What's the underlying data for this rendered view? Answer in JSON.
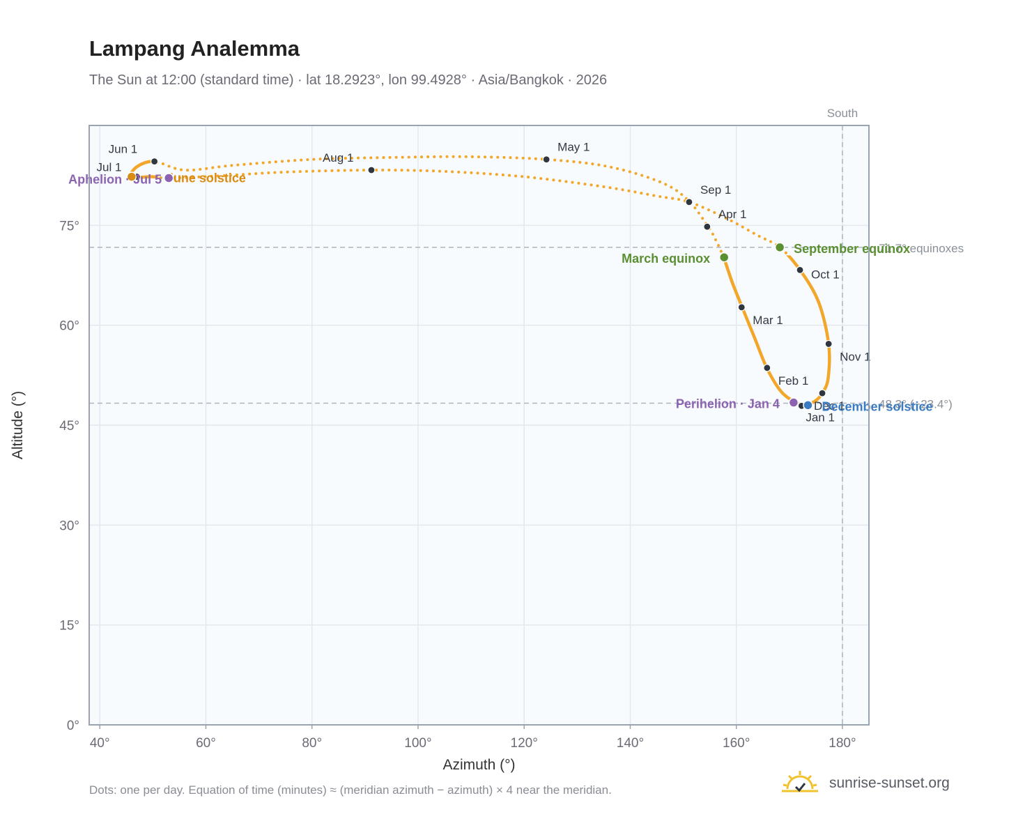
{
  "header": {
    "title": "Lampang Analemma",
    "subtitle": "The Sun at 12:00 (standard time) · lat 18.2923°, lon 99.4928° · Asia/Bangkok · 2026"
  },
  "footer": {
    "note": "Dots: one per day. Equation of time (minutes) ≈ (meridian azimuth − azimuth) × 4 near the meridian.",
    "brand": "sunrise-sunset.org"
  },
  "colors": {
    "curve": "#f2a72a",
    "month_dot": "#2f3640",
    "equinox": "#5a8f32",
    "solstice_june": "#d98c14",
    "solstice_december": "#3b7bc2",
    "apsis": "#8c63b0",
    "plot_bg": "#f8fbfe",
    "grid": "#e3e8ee",
    "frame": "#9aa3b0",
    "ref_line": "#aab5c0"
  },
  "chart_data": {
    "type": "scatter",
    "xlabel": "Azimuth (°)",
    "ylabel": "Altitude (°)",
    "xlim": [
      38,
      185
    ],
    "ylim": [
      0,
      90
    ],
    "xticks": [
      "40°",
      "60°",
      "80°",
      "100°",
      "120°",
      "140°",
      "160°",
      "180°"
    ],
    "xtick_values": [
      40,
      60,
      80,
      100,
      120,
      140,
      160,
      180
    ],
    "yticks": [
      "0°",
      "15°",
      "30°",
      "45°",
      "60°",
      "75°"
    ],
    "ytick_values": [
      0,
      15,
      30,
      45,
      60,
      75
    ],
    "grid": true,
    "south_line": {
      "x": 180,
      "label": "South"
    },
    "equinox_line": {
      "y": 71.7,
      "label": "71.7° equinoxes"
    },
    "dec_solstice_line": {
      "y": 48.3,
      "label": "48.3° (−23.4°)"
    },
    "analemma_path": [
      [
        173.5,
        48.0
      ],
      [
        171.5,
        48.3
      ],
      [
        168.5,
        50.0
      ],
      [
        165.8,
        53.5
      ],
      [
        163.5,
        58.0
      ],
      [
        161.0,
        62.9
      ],
      [
        159.2,
        66.5
      ],
      [
        157.6,
        70.2
      ],
      [
        156.0,
        73.0
      ],
      [
        154.6,
        74.9
      ],
      [
        151.0,
        78.7
      ],
      [
        146.0,
        81.4
      ],
      [
        136.0,
        83.8
      ],
      [
        124.2,
        84.9
      ],
      [
        110.0,
        85.3
      ],
      [
        95.0,
        85.2
      ],
      [
        80.0,
        84.9
      ],
      [
        65.0,
        84.0
      ],
      [
        56.0,
        83.3
      ],
      [
        50.3,
        84.6
      ],
      [
        47.0,
        83.8
      ],
      [
        46.0,
        82.3
      ],
      [
        50.0,
        82.3
      ],
      [
        53.0,
        82.1
      ],
      [
        62.0,
        82.4
      ],
      [
        75.0,
        83.0
      ],
      [
        91.2,
        83.3
      ],
      [
        105.0,
        83.1
      ],
      [
        120.0,
        82.3
      ],
      [
        135.0,
        80.8
      ],
      [
        145.0,
        79.4
      ],
      [
        151.1,
        78.5
      ],
      [
        158.0,
        76.1
      ],
      [
        164.0,
        73.5
      ],
      [
        168.2,
        71.7
      ],
      [
        172.0,
        68.3
      ],
      [
        175.5,
        63.5
      ],
      [
        177.4,
        57.2
      ],
      [
        177.3,
        52.0
      ],
      [
        176.2,
        49.8
      ],
      [
        175.0,
        48.7
      ],
      [
        173.5,
        48.0
      ]
    ],
    "month_markers": [
      {
        "label": "Jan 1",
        "x": 172.3,
        "y": 47.9,
        "dx": 6,
        "dy": 22
      },
      {
        "label": "Feb 1",
        "x": 165.8,
        "y": 53.6,
        "dx": 16,
        "dy": 24
      },
      {
        "label": "Mar 1",
        "x": 161.0,
        "y": 62.7,
        "dx": 16,
        "dy": 24
      },
      {
        "label": "Apr 1",
        "x": 154.5,
        "y": 74.8,
        "dx": 16,
        "dy": -12
      },
      {
        "label": "May 1",
        "x": 124.2,
        "y": 84.9,
        "dx": 16,
        "dy": -12
      },
      {
        "label": "Jun 1",
        "x": 50.3,
        "y": 84.6,
        "dx": -66,
        "dy": -12
      },
      {
        "label": "Jul 1",
        "x": 47.0,
        "y": 82.3,
        "dx": -58,
        "dy": -8
      },
      {
        "label": "Aug 1",
        "x": 91.2,
        "y": 83.3,
        "dx": -70,
        "dy": -12
      },
      {
        "label": "Sep 1",
        "x": 151.1,
        "y": 78.5,
        "dx": 16,
        "dy": -12
      },
      {
        "label": "Oct 1",
        "x": 172.0,
        "y": 68.3,
        "dx": 16,
        "dy": 12
      },
      {
        "label": "Nov 1",
        "x": 177.4,
        "y": 57.2,
        "dx": 16,
        "dy": 24
      },
      {
        "label": "Dec 1",
        "x": 176.2,
        "y": 49.8,
        "dx": -12,
        "dy": 24
      }
    ],
    "events": [
      {
        "label": "March equinox",
        "x": 157.7,
        "y": 70.2,
        "color_key": "equinox",
        "anchor": "end",
        "dx": -20,
        "dy": 8
      },
      {
        "label": "September equinox",
        "x": 168.2,
        "y": 71.7,
        "color_key": "equinox",
        "anchor": "start",
        "dx": 20,
        "dy": 8
      },
      {
        "label": "June solstice",
        "x": 46.0,
        "y": 82.3,
        "color_key": "solstice_june",
        "anchor": "start",
        "dx": 50,
        "dy": 8
      },
      {
        "label": "December solstice",
        "x": 173.5,
        "y": 48.0,
        "color_key": "solstice_december",
        "anchor": "start",
        "dx": 20,
        "dy": 8
      },
      {
        "label": "Aphelion · Jul 5",
        "x": 53.0,
        "y": 82.1,
        "color_key": "apsis",
        "anchor": "end",
        "dx": -10,
        "dy": 8
      },
      {
        "label": "Perihelion · Jan 4",
        "x": 170.8,
        "y": 48.4,
        "color_key": "apsis",
        "anchor": "end",
        "dx": -20,
        "dy": 8
      }
    ]
  }
}
